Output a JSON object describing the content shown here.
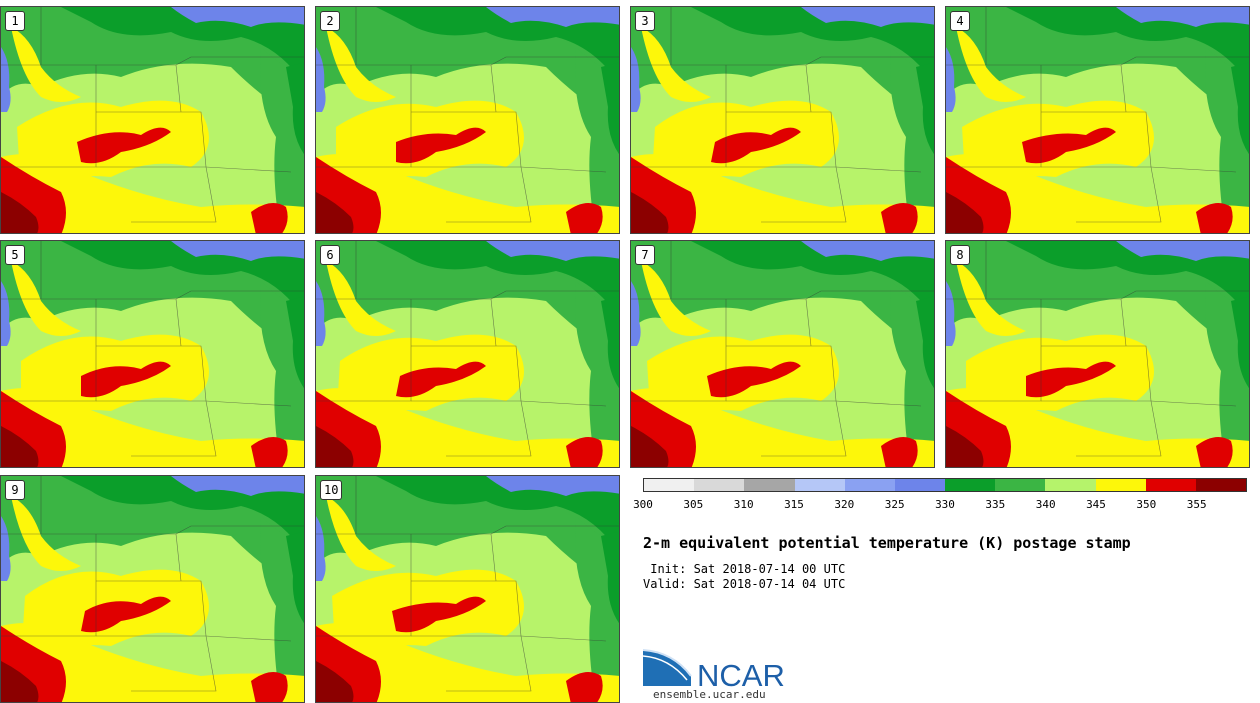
{
  "panels": [
    "1",
    "2",
    "3",
    "4",
    "5",
    "6",
    "7",
    "8",
    "9",
    "10"
  ],
  "colorbar": {
    "ticks": [
      "300",
      "305",
      "310",
      "315",
      "320",
      "325",
      "330",
      "335",
      "340",
      "345",
      "350",
      "355"
    ],
    "colors": [
      "#f0f0f0",
      "#d9d9d9",
      "#a6a6a6",
      "#b5c7f7",
      "#8aa1f2",
      "#6d84ea",
      "#0b9e2a",
      "#3bb544",
      "#b5f36b",
      "#fdf70a",
      "#e00000",
      "#8c0000"
    ]
  },
  "title": "2-m equivalent potential temperature (K) postage stamp",
  "init": " Init: Sat 2018-07-14 00 UTC",
  "valid": "Valid: Sat 2018-07-14 04 UTC",
  "logo": {
    "name": "NCAR",
    "url": "ensemble.ucar.edu"
  }
}
